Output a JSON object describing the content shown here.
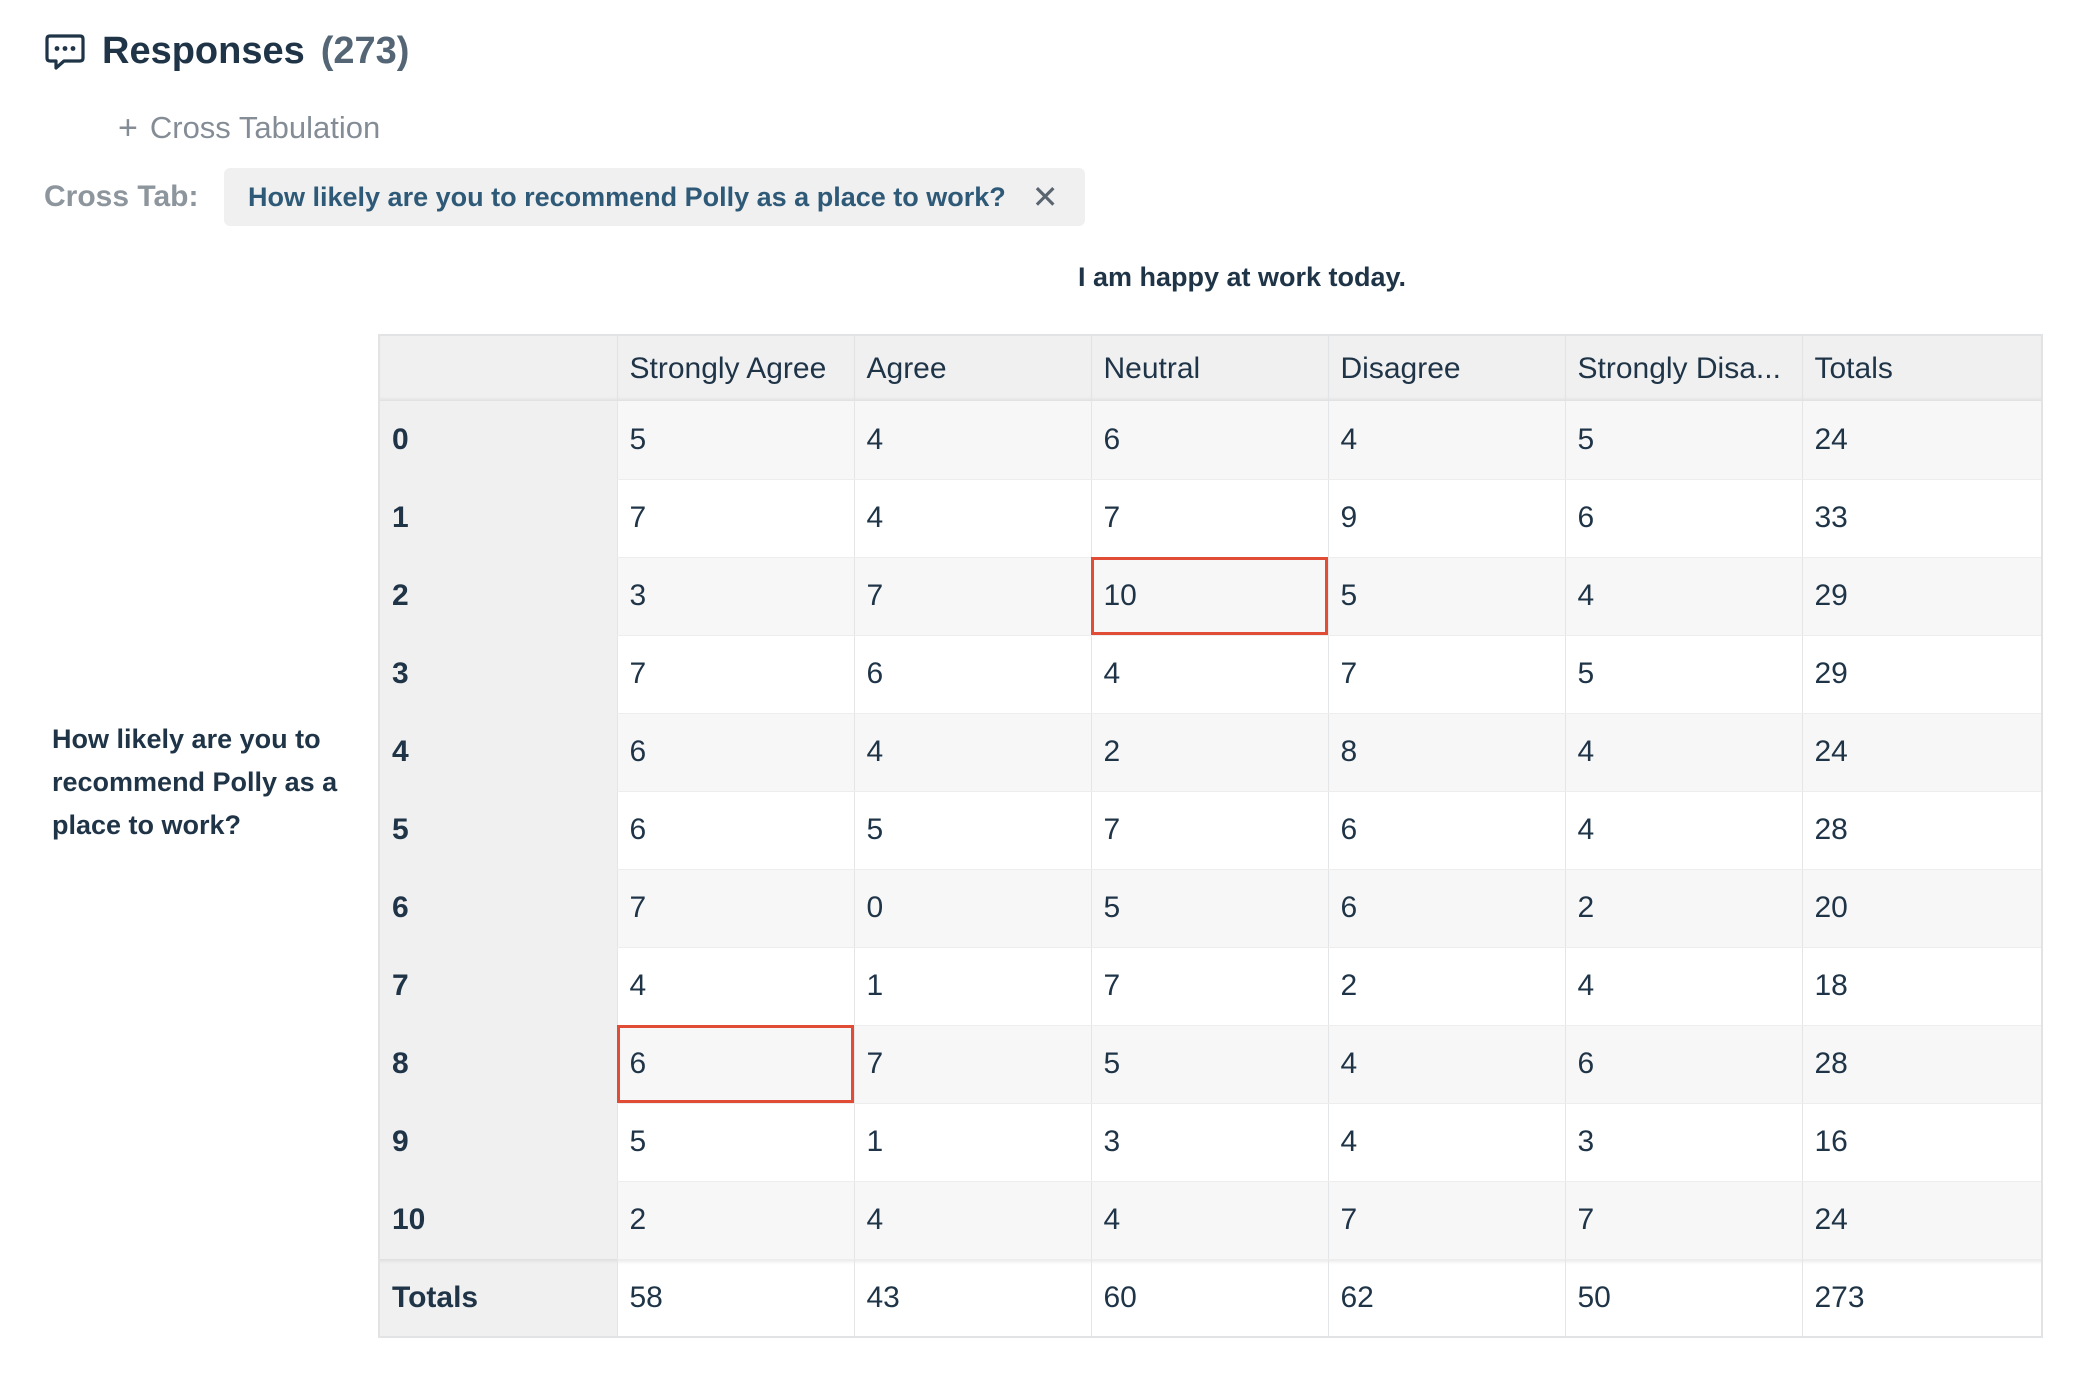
{
  "header": {
    "title": "Responses",
    "count": "(273)"
  },
  "crosstab_link": {
    "label": "Cross Tabulation"
  },
  "crosstab_filter": {
    "label": "Cross Tab:",
    "chip_text": "How likely are you to recommend Polly as a place to work?",
    "close_symbol": "✕"
  },
  "table": {
    "column_question": "I am happy at work today.",
    "row_question": "How likely are you to recommend Polly as a place to work?",
    "columns": [
      "Strongly Agree",
      "Agree",
      "Neutral",
      "Disagree",
      "Strongly Disa...",
      "Totals"
    ],
    "rows": [
      {
        "label": "0",
        "values": [
          "5",
          "4",
          "6",
          "4",
          "5",
          "24"
        ]
      },
      {
        "label": "1",
        "values": [
          "7",
          "4",
          "7",
          "9",
          "6",
          "33"
        ]
      },
      {
        "label": "2",
        "values": [
          "3",
          "7",
          "10",
          "5",
          "4",
          "29"
        ]
      },
      {
        "label": "3",
        "values": [
          "7",
          "6",
          "4",
          "7",
          "5",
          "29"
        ]
      },
      {
        "label": "4",
        "values": [
          "6",
          "4",
          "2",
          "8",
          "4",
          "24"
        ]
      },
      {
        "label": "5",
        "values": [
          "6",
          "5",
          "7",
          "6",
          "4",
          "28"
        ]
      },
      {
        "label": "6",
        "values": [
          "7",
          "0",
          "5",
          "6",
          "2",
          "20"
        ]
      },
      {
        "label": "7",
        "values": [
          "4",
          "1",
          "7",
          "2",
          "4",
          "18"
        ]
      },
      {
        "label": "8",
        "values": [
          "6",
          "7",
          "5",
          "4",
          "6",
          "28"
        ]
      },
      {
        "label": "9",
        "values": [
          "5",
          "1",
          "3",
          "4",
          "3",
          "16"
        ]
      },
      {
        "label": "10",
        "values": [
          "2",
          "4",
          "4",
          "7",
          "7",
          "24"
        ]
      }
    ],
    "totals": {
      "label": "Totals",
      "values": [
        "58",
        "43",
        "60",
        "62",
        "50",
        "273"
      ]
    },
    "highlighted_cells": [
      {
        "row": "2",
        "column": "Neutral"
      },
      {
        "row": "8",
        "column": "Strongly Agree"
      }
    ]
  },
  "colors": {
    "text_dark": "#1f3447",
    "chip_text": "#2e5a78",
    "highlight_border": "#e04c35",
    "header_bg": "#f0f0f1"
  },
  "icons": {
    "header_icon": "speech-bubble-icon",
    "add_icon": "plus-icon",
    "remove_icon": "close-icon"
  }
}
